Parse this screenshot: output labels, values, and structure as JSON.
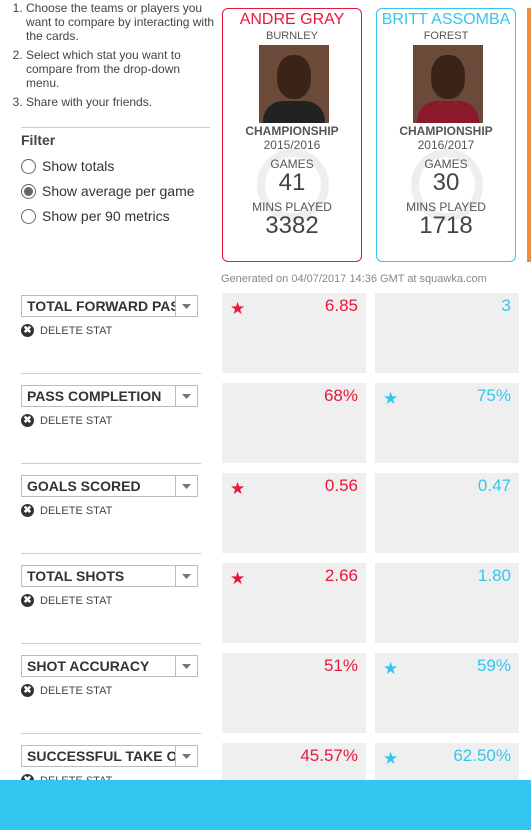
{
  "instructions": [
    "Choose the teams or players you want to compare by interacting with the cards.",
    "Select which stat you want to compare from the drop-down menu.",
    "Share with your friends."
  ],
  "filter": {
    "title": "Filter",
    "options": [
      "Show totals",
      "Show average per game",
      "Show per 90 metrics"
    ],
    "selected": 1
  },
  "players": [
    {
      "name": "ANDRE GRAY",
      "team": "BURNLEY",
      "competition": "CHAMPIONSHIP",
      "season": "2015/2016",
      "games_label": "GAMES",
      "games": 41,
      "mins_label": "MINS PLAYED",
      "mins": 3382,
      "color": "#e8173c"
    },
    {
      "name": "BRITT ASSOMBA",
      "team": "FOREST",
      "competition": "CHAMPIONSHIP",
      "season": "2016/2017",
      "games_label": "GAMES",
      "games": 30,
      "mins_label": "MINS PLAYED",
      "mins": 1718,
      "color": "#33c6f0"
    }
  ],
  "generated": "Generated on 04/07/2017 14:36 GMT at squawka.com",
  "delete_label": "DELETE STAT",
  "stats": [
    {
      "name": "TOTAL FORWARD PAS",
      "values": [
        6.85,
        3
      ]
    },
    {
      "name": "PASS COMPLETION",
      "values": [
        68,
        75
      ],
      "value_labels": [
        "68%",
        "75%"
      ]
    },
    {
      "name": "GOALS SCORED",
      "values": [
        0.56,
        0.47
      ]
    },
    {
      "name": "TOTAL SHOTS",
      "values": [
        2.66,
        1.8
      ],
      "value_labels": [
        "2.66",
        "1.80"
      ]
    },
    {
      "name": "SHOT ACCURACY",
      "values": [
        51,
        59
      ],
      "value_labels": [
        "51%",
        "59%"
      ]
    },
    {
      "name": "SUCCESSFUL TAKE O",
      "values": [
        45.57,
        62.5
      ],
      "value_labels": [
        "45.57%",
        "62.50%"
      ]
    }
  ]
}
